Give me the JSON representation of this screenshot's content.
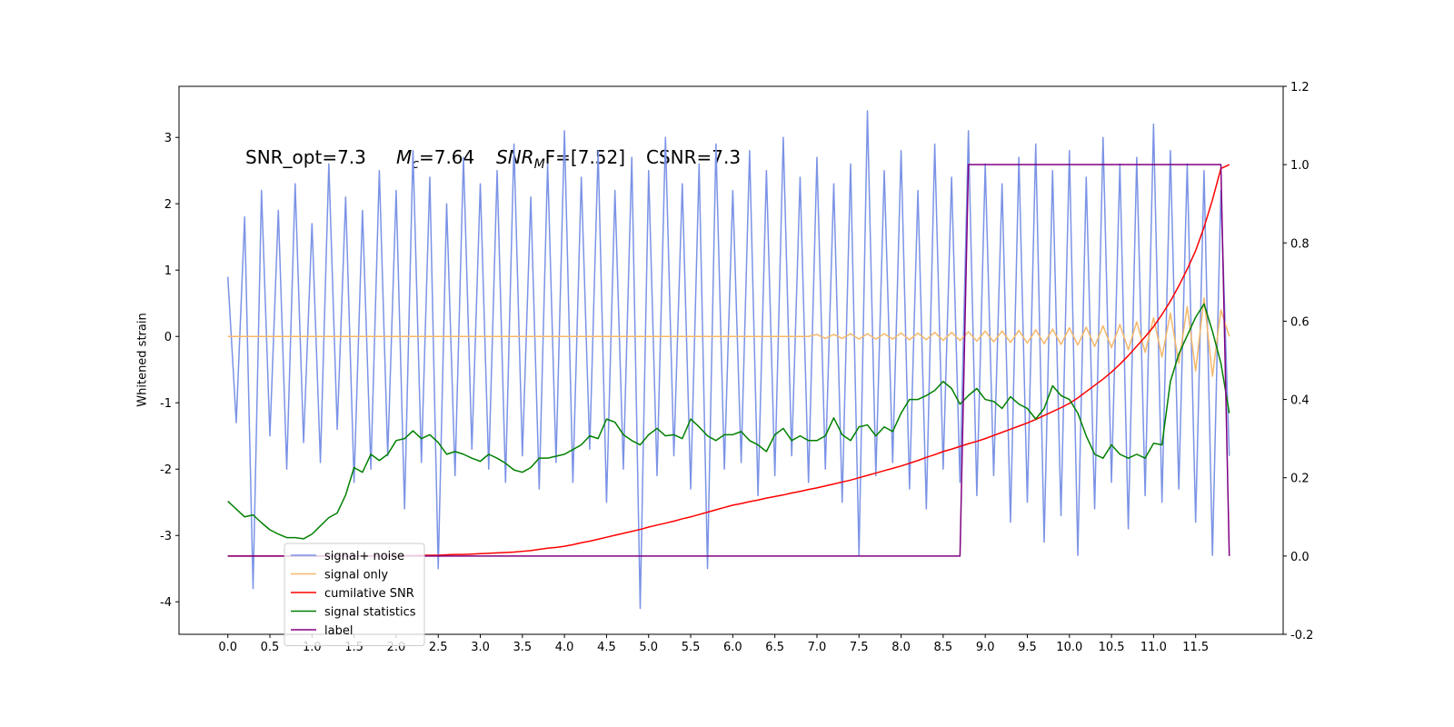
{
  "chart_data": {
    "type": "line",
    "ylabel": "Whitened strain",
    "annotations": [
      {
        "text": "SNR_opt=7.3"
      },
      {
        "main": "M",
        "sub": "c",
        "rest": "=7.64"
      },
      {
        "main": "SNR",
        "sub": "M",
        "rest": "F=[7.52]"
      },
      {
        "text": "CSNR=7.3"
      }
    ],
    "legend": "lower left",
    "grid": false,
    "x": [
      0.0,
      0.1,
      0.2,
      0.3,
      0.4,
      0.5,
      0.6,
      0.7,
      0.8,
      0.9,
      1.0,
      1.1,
      1.2,
      1.3,
      1.4,
      1.5,
      1.6,
      1.7,
      1.8,
      1.9,
      2.0,
      2.1,
      2.2,
      2.3,
      2.4,
      2.5,
      2.6,
      2.7,
      2.8,
      2.9,
      3.0,
      3.1,
      3.2,
      3.3,
      3.4,
      3.5,
      3.6,
      3.7,
      3.8,
      3.9,
      4.0,
      4.1,
      4.2,
      4.3,
      4.4,
      4.5,
      4.6,
      4.7,
      4.8,
      4.9,
      5.0,
      5.1,
      5.2,
      5.3,
      5.4,
      5.5,
      5.6,
      5.7,
      5.8,
      5.9,
      6.0,
      6.1,
      6.2,
      6.3,
      6.4,
      6.5,
      6.6,
      6.7,
      6.8,
      6.9,
      7.0,
      7.1,
      7.2,
      7.3,
      7.4,
      7.5,
      7.6,
      7.7,
      7.8,
      7.9,
      8.0,
      8.1,
      8.2,
      8.3,
      8.4,
      8.5,
      8.6,
      8.7,
      8.8,
      8.9,
      9.0,
      9.1,
      9.2,
      9.3,
      9.4,
      9.5,
      9.6,
      9.7,
      9.8,
      9.9,
      10.0,
      10.1,
      10.2,
      10.3,
      10.4,
      10.5,
      10.6,
      10.7,
      10.8,
      10.9,
      11.0,
      11.1,
      11.2,
      11.3,
      11.4,
      11.5,
      11.6,
      11.7,
      11.8,
      11.9
    ],
    "xlim": [
      -0.58,
      12.54
    ],
    "xticks": [
      {
        "value": 0,
        "label": "0.0"
      },
      0.5,
      {
        "value": 1,
        "label": "1.0"
      },
      1.5,
      {
        "value": 2,
        "label": "2.0"
      },
      2.5,
      {
        "value": 3,
        "label": "3.0"
      },
      3.5,
      {
        "value": 4,
        "label": "4.0"
      },
      4.5,
      {
        "value": 5,
        "label": "5.0"
      },
      5.5,
      {
        "value": 6,
        "label": "6.0"
      },
      6.5,
      {
        "value": 7,
        "label": "7.0"
      },
      7.5,
      {
        "value": 8,
        "label": "8.0"
      },
      8.5,
      {
        "value": 9,
        "label": "9.0"
      },
      9.5,
      {
        "value": 10,
        "label": "10.0"
      },
      10.5,
      {
        "value": 11,
        "label": "11.0"
      },
      11.5
    ],
    "ylim": [
      -4.49,
      3.77
    ],
    "yticks": [
      -4,
      -3,
      -2,
      -1,
      0,
      1,
      2,
      3
    ],
    "y2lim": [
      -0.2,
      1.2
    ],
    "y2ticks": [
      -0.2,
      {
        "value": 0,
        "label": "0.0"
      },
      0.2,
      0.4,
      0.6,
      0.8,
      {
        "value": 1,
        "label": "1.0"
      },
      1.2
    ],
    "series": [
      {
        "name": "signal+ noise",
        "color": "#7b93e6",
        "values": [
          0.9,
          -1.3,
          1.8,
          -3.8,
          2.2,
          -1.5,
          1.9,
          -2.0,
          2.3,
          -1.6,
          1.7,
          -1.9,
          2.6,
          -1.4,
          2.1,
          -2.2,
          1.9,
          -2.0,
          2.5,
          -1.8,
          2.2,
          -2.6,
          2.8,
          -1.9,
          2.4,
          -3.5,
          2.0,
          -2.1,
          2.7,
          -1.7,
          2.3,
          -2.0,
          2.5,
          -2.2,
          2.9,
          -1.8,
          2.1,
          -2.3,
          2.6,
          -1.9,
          3.1,
          -2.2,
          2.4,
          -1.7,
          2.8,
          -2.5,
          2.2,
          -2.0,
          2.7,
          -4.1,
          2.5,
          -2.1,
          3.0,
          -1.8,
          2.3,
          -2.3,
          2.6,
          -3.5,
          2.9,
          -2.0,
          2.2,
          -1.9,
          2.8,
          -2.4,
          2.5,
          -2.1,
          3.0,
          -1.8,
          2.4,
          -2.2,
          2.7,
          -2.0,
          2.3,
          -2.5,
          2.6,
          -3.3,
          3.4,
          -2.1,
          2.5,
          -1.9,
          2.8,
          -2.3,
          2.2,
          -2.6,
          2.9,
          -2.0,
          2.4,
          -2.2,
          3.1,
          -2.4,
          2.6,
          -2.1,
          2.3,
          -2.8,
          2.7,
          -2.5,
          2.9,
          -3.1,
          2.5,
          -2.7,
          2.8,
          -3.3,
          2.4,
          -2.6,
          3.0,
          -2.2,
          2.6,
          -2.9,
          2.7,
          -2.4,
          3.2,
          -2.5,
          2.8,
          -2.3,
          2.6,
          -2.8,
          2.5,
          -3.3,
          2.2,
          -1.8
        ]
      },
      {
        "name": "signal only",
        "color": "#f5b86a",
        "values": [
          0,
          0,
          0,
          0,
          0,
          0,
          0,
          0,
          0,
          0,
          0,
          0,
          0,
          0,
          0,
          0,
          0,
          0,
          0,
          0,
          0,
          0,
          0,
          0,
          0,
          0,
          0,
          0,
          0,
          0,
          0,
          0,
          0,
          0,
          0,
          0,
          0,
          0,
          0,
          0,
          0,
          0,
          0,
          0,
          0,
          0,
          0,
          0,
          0,
          0,
          0,
          0,
          0,
          0,
          0,
          0,
          0,
          0,
          0,
          0,
          0,
          0,
          0,
          0,
          0,
          0,
          0,
          0,
          0,
          0,
          0.03,
          -0.03,
          0.03,
          -0.03,
          0.04,
          -0.04,
          0.04,
          -0.04,
          0.04,
          -0.04,
          0.05,
          -0.05,
          0.05,
          -0.05,
          0.06,
          -0.06,
          0.06,
          -0.06,
          0.07,
          -0.07,
          0.08,
          -0.08,
          0.08,
          -0.09,
          0.09,
          -0.1,
          0.1,
          -0.11,
          0.11,
          -0.12,
          0.13,
          -0.13,
          0.14,
          -0.15,
          0.16,
          -0.17,
          0.18,
          -0.2,
          0.22,
          -0.24,
          0.28,
          -0.31,
          0.35,
          -0.4,
          0.45,
          -0.52,
          0.58,
          -0.6,
          0.4,
          0.0
        ]
      },
      {
        "name": "cumilative SNR",
        "color": "#ff0000",
        "axis": "y2",
        "values": [
          0,
          0,
          0,
          0,
          0,
          0,
          0,
          0,
          0,
          0,
          0,
          0,
          0,
          0,
          0,
          0,
          0,
          0,
          0,
          0,
          0.001,
          0.001,
          0.001,
          0.002,
          0.002,
          0.002,
          0.003,
          0.004,
          0.004,
          0.005,
          0.006,
          0.007,
          0.008,
          0.009,
          0.01,
          0.012,
          0.014,
          0.017,
          0.02,
          0.022,
          0.025,
          0.029,
          0.034,
          0.038,
          0.043,
          0.048,
          0.053,
          0.058,
          0.063,
          0.068,
          0.074,
          0.079,
          0.084,
          0.089,
          0.095,
          0.1,
          0.106,
          0.112,
          0.118,
          0.124,
          0.13,
          0.134,
          0.139,
          0.143,
          0.148,
          0.152,
          0.156,
          0.161,
          0.165,
          0.17,
          0.174,
          0.179,
          0.184,
          0.189,
          0.194,
          0.2,
          0.206,
          0.212,
          0.218,
          0.224,
          0.23,
          0.237,
          0.244,
          0.252,
          0.259,
          0.267,
          0.273,
          0.28,
          0.287,
          0.293,
          0.3,
          0.308,
          0.316,
          0.324,
          0.332,
          0.34,
          0.349,
          0.359,
          0.369,
          0.379,
          0.39,
          0.404,
          0.42,
          0.436,
          0.452,
          0.47,
          0.49,
          0.512,
          0.536,
          0.56,
          0.586,
          0.617,
          0.651,
          0.69,
          0.733,
          0.78,
          0.84,
          0.91,
          0.99,
          1.0
        ]
      },
      {
        "name": "signal statistics",
        "color": "#008000",
        "axis": "y2",
        "values": [
          0.14,
          0.12,
          0.1,
          0.105,
          0.085,
          0.067,
          0.056,
          0.047,
          0.047,
          0.044,
          0.056,
          0.077,
          0.098,
          0.11,
          0.156,
          0.226,
          0.214,
          0.26,
          0.244,
          0.26,
          0.295,
          0.3,
          0.32,
          0.3,
          0.31,
          0.29,
          0.26,
          0.267,
          0.26,
          0.25,
          0.242,
          0.26,
          0.25,
          0.237,
          0.22,
          0.214,
          0.226,
          0.25,
          0.25,
          0.255,
          0.26,
          0.272,
          0.284,
          0.307,
          0.3,
          0.35,
          0.342,
          0.31,
          0.295,
          0.284,
          0.31,
          0.326,
          0.307,
          0.31,
          0.3,
          0.35,
          0.33,
          0.307,
          0.295,
          0.31,
          0.31,
          0.318,
          0.295,
          0.284,
          0.267,
          0.31,
          0.326,
          0.295,
          0.307,
          0.295,
          0.295,
          0.307,
          0.353,
          0.31,
          0.295,
          0.33,
          0.335,
          0.307,
          0.33,
          0.318,
          0.365,
          0.4,
          0.4,
          0.41,
          0.423,
          0.446,
          0.428,
          0.388,
          0.41,
          0.428,
          0.4,
          0.395,
          0.377,
          0.407,
          0.388,
          0.377,
          0.35,
          0.377,
          0.435,
          0.41,
          0.4,
          0.365,
          0.307,
          0.26,
          0.25,
          0.284,
          0.26,
          0.25,
          0.26,
          0.25,
          0.288,
          0.284,
          0.446,
          0.516,
          0.563,
          0.61,
          0.644,
          0.574,
          0.493,
          0.365
        ]
      },
      {
        "name": "label",
        "color": "#800080",
        "axis": "y2",
        "values": [
          0,
          0,
          0,
          0,
          0,
          0,
          0,
          0,
          0,
          0,
          0,
          0,
          0,
          0,
          0,
          0,
          0,
          0,
          0,
          0,
          0,
          0,
          0,
          0,
          0,
          0,
          0,
          0,
          0,
          0,
          0,
          0,
          0,
          0,
          0,
          0,
          0,
          0,
          0,
          0,
          0,
          0,
          0,
          0,
          0,
          0,
          0,
          0,
          0,
          0,
          0,
          0,
          0,
          0,
          0,
          0,
          0,
          0,
          0,
          0,
          0,
          0,
          0,
          0,
          0,
          0,
          0,
          0,
          0,
          0,
          0,
          0,
          0,
          0,
          0,
          0,
          0,
          0,
          0,
          0,
          0,
          0,
          0,
          0,
          0,
          0,
          0,
          0,
          1,
          1,
          1,
          1,
          1,
          1,
          1,
          1,
          1,
          1,
          1,
          1,
          1,
          1,
          1,
          1,
          1,
          1,
          1,
          1,
          1,
          1,
          1,
          1,
          1,
          1,
          1,
          1,
          1,
          1,
          1,
          0
        ]
      }
    ]
  }
}
